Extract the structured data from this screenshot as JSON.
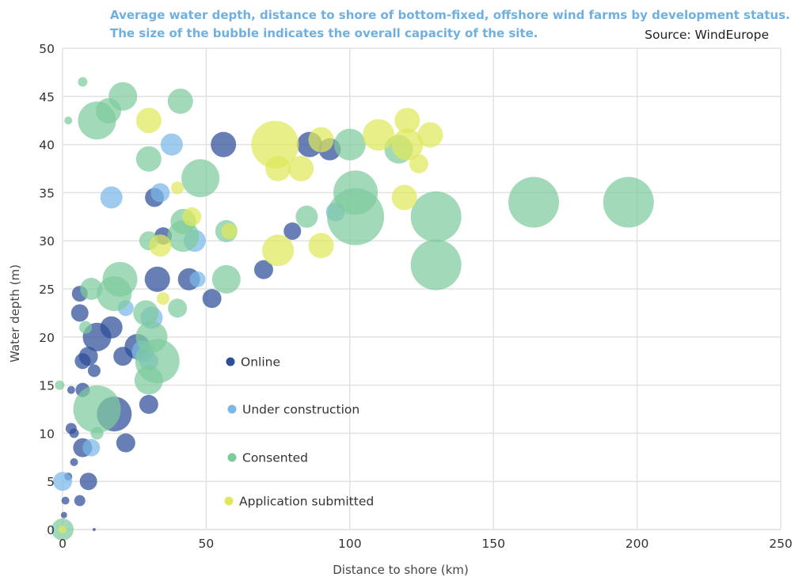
{
  "header": {
    "title_line1": "Average water depth, distance to shore of bottom-fixed, offshore wind farms by development status.",
    "title_line2": "The size of the bubble indicates the overall capacity of the site.",
    "source": "Source: WindEurope"
  },
  "chart_data": {
    "type": "scatter",
    "xlabel": "Distance to shore (km)",
    "ylabel": "Water depth (m)",
    "xlim": [
      0,
      250
    ],
    "ylim": [
      0,
      50
    ],
    "x_ticks": [
      "0",
      "50",
      "100",
      "150",
      "200",
      "250"
    ],
    "y_ticks": [
      "0",
      "5",
      "10",
      "15",
      "20",
      "25",
      "30",
      "35",
      "40",
      "45",
      "50"
    ],
    "grid": "vertical and horizontal",
    "legend_position": "inside-center",
    "series": [
      {
        "name": "Online",
        "color": "#2e4e9a",
        "points": [
          {
            "x": 56,
            "y": 40,
            "r": 16
          },
          {
            "x": 93,
            "y": 39.5,
            "r": 14
          },
          {
            "x": 86,
            "y": 40,
            "r": 16
          },
          {
            "x": 32,
            "y": 34.5,
            "r": 12
          },
          {
            "x": 35,
            "y": 30.5,
            "r": 11
          },
          {
            "x": 80,
            "y": 31,
            "r": 11
          },
          {
            "x": 70,
            "y": 27,
            "r": 12
          },
          {
            "x": 33,
            "y": 26,
            "r": 16
          },
          {
            "x": 44,
            "y": 26,
            "r": 14
          },
          {
            "x": 52,
            "y": 24,
            "r": 12
          },
          {
            "x": 6,
            "y": 24.5,
            "r": 10
          },
          {
            "x": 6,
            "y": 22.5,
            "r": 11
          },
          {
            "x": 12,
            "y": 20,
            "r": 18
          },
          {
            "x": 17,
            "y": 21,
            "r": 14
          },
          {
            "x": 26,
            "y": 19,
            "r": 16
          },
          {
            "x": 9,
            "y": 18,
            "r": 12
          },
          {
            "x": 7,
            "y": 17.5,
            "r": 10
          },
          {
            "x": 11,
            "y": 16.5,
            "r": 8
          },
          {
            "x": 21,
            "y": 18,
            "r": 12
          },
          {
            "x": 7,
            "y": 14.5,
            "r": 9
          },
          {
            "x": 3,
            "y": 14.5,
            "r": 5
          },
          {
            "x": 18,
            "y": 12,
            "r": 22
          },
          {
            "x": 30,
            "y": 13,
            "r": 12
          },
          {
            "x": 3,
            "y": 10.5,
            "r": 7
          },
          {
            "x": 4,
            "y": 10,
            "r": 6
          },
          {
            "x": 7,
            "y": 8.5,
            "r": 12
          },
          {
            "x": 22,
            "y": 9,
            "r": 12
          },
          {
            "x": 4,
            "y": 7,
            "r": 5
          },
          {
            "x": 9,
            "y": 5,
            "r": 11
          },
          {
            "x": 6,
            "y": 3,
            "r": 7
          },
          {
            "x": 2,
            "y": 5.5,
            "r": 5
          },
          {
            "x": 1,
            "y": 3,
            "r": 5
          },
          {
            "x": 0.5,
            "y": 1.5,
            "r": 4
          },
          {
            "x": 11,
            "y": 0,
            "r": 2
          }
        ]
      },
      {
        "name": "Under construction",
        "color": "#7ab8e8",
        "points": [
          {
            "x": 38,
            "y": 40,
            "r": 14
          },
          {
            "x": 17,
            "y": 34.5,
            "r": 14
          },
          {
            "x": 34,
            "y": 35,
            "r": 12
          },
          {
            "x": 46,
            "y": 30,
            "r": 14
          },
          {
            "x": 47,
            "y": 26,
            "r": 10
          },
          {
            "x": 31,
            "y": 22,
            "r": 14
          },
          {
            "x": 28,
            "y": 18.5,
            "r": 14
          },
          {
            "x": 30,
            "y": 17.5,
            "r": 12
          },
          {
            "x": 10,
            "y": 8.5,
            "r": 11
          },
          {
            "x": 0,
            "y": 5,
            "r": 12
          },
          {
            "x": 95,
            "y": 33,
            "r": 12
          },
          {
            "x": 22,
            "y": 23,
            "r": 10
          }
        ]
      },
      {
        "name": "Consented",
        "color": "#7ecb9e",
        "points": [
          {
            "x": 7,
            "y": 46.5,
            "r": 6
          },
          {
            "x": 2,
            "y": 42.5,
            "r": 5
          },
          {
            "x": 12,
            "y": 42.5,
            "r": 24
          },
          {
            "x": 16,
            "y": 43.5,
            "r": 16
          },
          {
            "x": 21,
            "y": 45,
            "r": 18
          },
          {
            "x": 41,
            "y": 44.5,
            "r": 16
          },
          {
            "x": 30,
            "y": 38.5,
            "r": 16
          },
          {
            "x": 48,
            "y": 36.5,
            "r": 24
          },
          {
            "x": 102,
            "y": 35,
            "r": 28
          },
          {
            "x": 102,
            "y": 32.5,
            "r": 36
          },
          {
            "x": 130,
            "y": 32.5,
            "r": 32
          },
          {
            "x": 130,
            "y": 27.5,
            "r": 32
          },
          {
            "x": 164,
            "y": 34,
            "r": 32
          },
          {
            "x": 197,
            "y": 34,
            "r": 32
          },
          {
            "x": 85,
            "y": 32.5,
            "r": 14
          },
          {
            "x": 57,
            "y": 31,
            "r": 14
          },
          {
            "x": 30,
            "y": 30,
            "r": 12
          },
          {
            "x": 42,
            "y": 32,
            "r": 16
          },
          {
            "x": 42,
            "y": 30.5,
            "r": 20
          },
          {
            "x": 57,
            "y": 26,
            "r": 18
          },
          {
            "x": 10,
            "y": 25,
            "r": 14
          },
          {
            "x": 20,
            "y": 26,
            "r": 22
          },
          {
            "x": 18,
            "y": 24.5,
            "r": 22
          },
          {
            "x": 29,
            "y": 22.5,
            "r": 16
          },
          {
            "x": 40,
            "y": 23,
            "r": 12
          },
          {
            "x": 8,
            "y": 21,
            "r": 8
          },
          {
            "x": 31,
            "y": 20,
            "r": 20
          },
          {
            "x": 33,
            "y": 17.5,
            "r": 28
          },
          {
            "x": 30,
            "y": 15.5,
            "r": 18
          },
          {
            "x": 12,
            "y": 12.5,
            "r": 30
          },
          {
            "x": 12,
            "y": 10,
            "r": 8
          },
          {
            "x": -1,
            "y": 15,
            "r": 6
          },
          {
            "x": 0,
            "y": 0,
            "r": 14
          },
          {
            "x": 100,
            "y": 40,
            "r": 20
          },
          {
            "x": 117,
            "y": 39.5,
            "r": 18
          }
        ]
      },
      {
        "name": "Application submitted",
        "color": "#dfe85a",
        "points": [
          {
            "x": 74,
            "y": 40,
            "r": 30
          },
          {
            "x": 30,
            "y": 42.5,
            "r": 16
          },
          {
            "x": 90,
            "y": 40.5,
            "r": 16
          },
          {
            "x": 75,
            "y": 37.5,
            "r": 16
          },
          {
            "x": 83,
            "y": 37.5,
            "r": 16
          },
          {
            "x": 110,
            "y": 41,
            "r": 20
          },
          {
            "x": 120,
            "y": 42.5,
            "r": 16
          },
          {
            "x": 120,
            "y": 40,
            "r": 20
          },
          {
            "x": 128,
            "y": 41,
            "r": 16
          },
          {
            "x": 124,
            "y": 38,
            "r": 12
          },
          {
            "x": 119,
            "y": 34.5,
            "r": 16
          },
          {
            "x": 40,
            "y": 35.5,
            "r": 8
          },
          {
            "x": 45,
            "y": 32.5,
            "r": 12
          },
          {
            "x": 58,
            "y": 31,
            "r": 10
          },
          {
            "x": 34,
            "y": 29.5,
            "r": 14
          },
          {
            "x": 75,
            "y": 29,
            "r": 20
          },
          {
            "x": 90,
            "y": 29.5,
            "r": 16
          },
          {
            "x": 35,
            "y": 24,
            "r": 8
          },
          {
            "x": 0,
            "y": 0,
            "r": 5
          }
        ]
      }
    ]
  }
}
